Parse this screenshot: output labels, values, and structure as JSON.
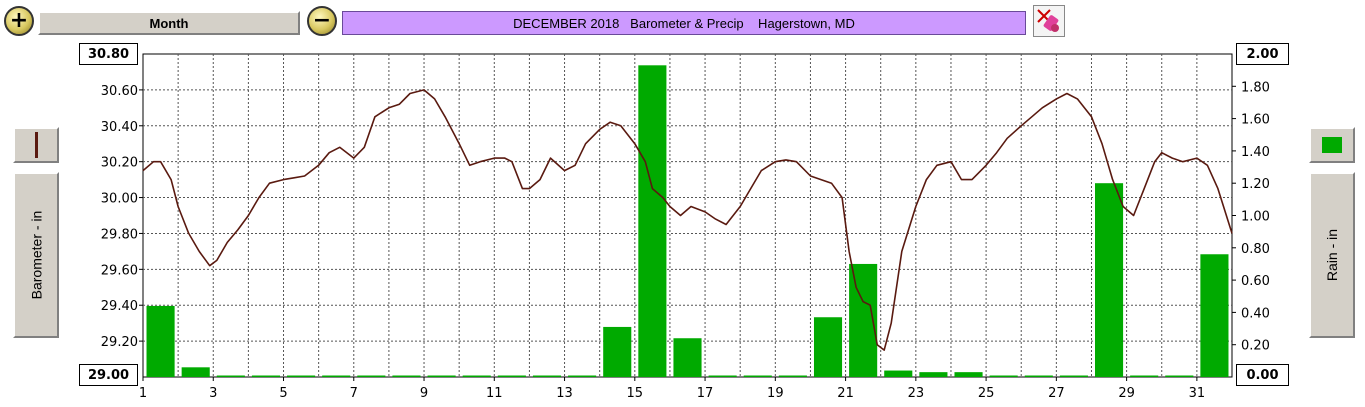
{
  "toolbar": {
    "zoom_in_symbol": "+",
    "period_label": "Month",
    "zoom_out_symbol": "−",
    "title": "DECEMBER 2018   Barometer & Precip    Hagerstown, MD",
    "tool_icon": "paint-eraser-icon"
  },
  "colors": {
    "barometer": "#5a1a10",
    "rain": "#00aa00",
    "title_bg": "#cc99ff",
    "grid": "#555555"
  },
  "left_axis": {
    "label": "Barometer - in",
    "top_value": "30.80",
    "bottom_value": "29.00"
  },
  "right_axis": {
    "label": "Rain - in",
    "top_value": "2.00",
    "bottom_value": "0.00"
  },
  "chart_data": {
    "type": "bar+line",
    "title": "DECEMBER 2018   Barometer & Precip    Hagerstown, MD",
    "x_ticks": [
      "1",
      "3",
      "5",
      "7",
      "9",
      "11",
      "13",
      "15",
      "17",
      "19",
      "21",
      "23",
      "25",
      "27",
      "29",
      "31"
    ],
    "x_range": [
      1,
      32
    ],
    "y_left": {
      "label": "Barometer - in",
      "range": [
        29.0,
        30.8
      ],
      "ticks": [
        "30.80",
        "30.60",
        "30.40",
        "30.20",
        "30.00",
        "29.80",
        "29.60",
        "29.40",
        "29.20",
        "29.00"
      ]
    },
    "y_right": {
      "label": "Rain - in",
      "range": [
        0,
        2.0
      ],
      "ticks": [
        "2.00",
        "1.80",
        "1.60",
        "1.40",
        "1.20",
        "1.00",
        "0.80",
        "0.60",
        "0.40",
        "0.20",
        "0.00"
      ]
    },
    "grid": true,
    "rain": {
      "days": [
        1,
        2,
        3,
        4,
        5,
        6,
        7,
        8,
        9,
        10,
        11,
        12,
        13,
        14,
        15,
        16,
        17,
        18,
        19,
        20,
        21,
        22,
        23,
        24,
        25,
        26,
        27,
        28,
        29,
        30,
        31
      ],
      "values": [
        0.44,
        0.06,
        0,
        0,
        0,
        0,
        0,
        0,
        0,
        0,
        0,
        0,
        0,
        0.31,
        1.93,
        0.24,
        0,
        0,
        0,
        0.37,
        0.7,
        0.04,
        0.03,
        0.03,
        0,
        0,
        0,
        1.2,
        0,
        0,
        0.76
      ]
    },
    "barometer": {
      "x": [
        1.0,
        1.3,
        1.5,
        1.8,
        2.0,
        2.3,
        2.6,
        2.9,
        3.1,
        3.4,
        3.7,
        4.0,
        4.3,
        4.6,
        5.0,
        5.3,
        5.6,
        6.0,
        6.3,
        6.6,
        7.0,
        7.3,
        7.6,
        8.0,
        8.3,
        8.6,
        9.0,
        9.3,
        9.6,
        10.0,
        10.3,
        10.6,
        11.0,
        11.3,
        11.5,
        11.8,
        12.0,
        12.3,
        12.6,
        13.0,
        13.3,
        13.6,
        14.0,
        14.3,
        14.6,
        15.0,
        15.3,
        15.5,
        15.8,
        16.0,
        16.3,
        16.6,
        17.0,
        17.3,
        17.6,
        18.0,
        18.3,
        18.6,
        19.0,
        19.3,
        19.6,
        20.0,
        20.3,
        20.6,
        20.9,
        21.1,
        21.3,
        21.5,
        21.7,
        21.9,
        22.1,
        22.3,
        22.6,
        23.0,
        23.3,
        23.6,
        24.0,
        24.3,
        24.6,
        25.0,
        25.3,
        25.6,
        26.0,
        26.3,
        26.6,
        27.0,
        27.3,
        27.6,
        28.0,
        28.3,
        28.6,
        28.9,
        29.2,
        29.5,
        29.8,
        30.0,
        30.3,
        30.6,
        31.0,
        31.3,
        31.6,
        32.0
      ],
      "values": [
        30.15,
        30.2,
        30.2,
        30.1,
        29.95,
        29.8,
        29.7,
        29.62,
        29.65,
        29.75,
        29.82,
        29.9,
        30.0,
        30.08,
        30.1,
        30.11,
        30.12,
        30.18,
        30.25,
        30.28,
        30.22,
        30.28,
        30.45,
        30.5,
        30.52,
        30.58,
        30.6,
        30.55,
        30.45,
        30.3,
        30.18,
        30.2,
        30.22,
        30.22,
        30.2,
        30.05,
        30.05,
        30.1,
        30.22,
        30.15,
        30.18,
        30.3,
        30.38,
        30.42,
        30.4,
        30.3,
        30.2,
        30.05,
        30.0,
        29.95,
        29.9,
        29.95,
        29.92,
        29.88,
        29.85,
        29.95,
        30.05,
        30.15,
        30.2,
        30.21,
        30.2,
        30.12,
        30.1,
        30.08,
        30.0,
        29.7,
        29.5,
        29.42,
        29.4,
        29.18,
        29.15,
        29.3,
        29.7,
        29.95,
        30.1,
        30.18,
        30.2,
        30.1,
        30.1,
        30.18,
        30.25,
        30.33,
        30.4,
        30.45,
        30.5,
        30.55,
        30.58,
        30.55,
        30.45,
        30.3,
        30.1,
        29.95,
        29.9,
        30.05,
        30.2,
        30.25,
        30.22,
        30.2,
        30.22,
        30.18,
        30.05,
        29.8
      ]
    }
  }
}
